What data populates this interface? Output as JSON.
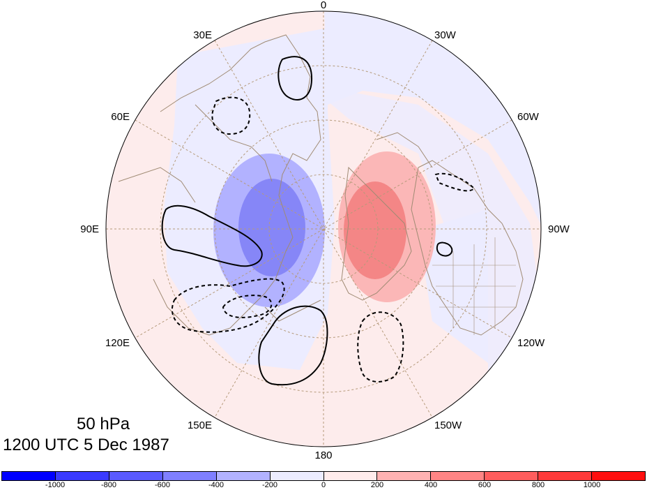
{
  "panel": {
    "level_label": "50 hPa",
    "time_label": "1200 UTC 5 Dec 1987"
  },
  "longitude_labels": [
    "0",
    "30W",
    "60W",
    "90W",
    "120W",
    "150W",
    "180",
    "150E",
    "120E",
    "90E",
    "60E",
    "30E"
  ],
  "colorbar": {
    "colors": [
      "#0000ff",
      "#3a3aff",
      "#5a5aff",
      "#7f7fff",
      "#b2b2ff",
      "#ececff",
      "#ffecec",
      "#ffb2b2",
      "#ff8585",
      "#ff5d5d",
      "#ff3a3a",
      "#ff0f0f"
    ],
    "labels": [
      "-1000",
      "-800",
      "-600",
      "-400",
      "-200",
      "0",
      "200",
      "400",
      "600",
      "800",
      "1000"
    ]
  },
  "fill_colors": {
    "background_positive": "#fdecec",
    "background_negative": "#ececff",
    "neg_200": "#b2b2ff",
    "neg_400": "#8686f7",
    "pos_200": "#fbb7b7",
    "pos_400": "#f48686",
    "coast": "#a08b74",
    "grid": "#b59a7a"
  }
}
